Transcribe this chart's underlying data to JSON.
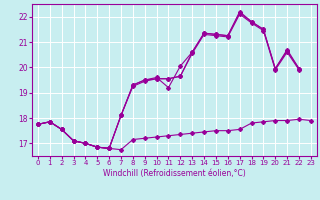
{
  "xlabel": "Windchill (Refroidissement éolien,°C)",
  "background_color": "#c8eef0",
  "line_color": "#990099",
  "grid_color": "#ffffff",
  "xlim": [
    -0.5,
    23.5
  ],
  "ylim": [
    16.5,
    22.5
  ],
  "xticks": [
    0,
    1,
    2,
    3,
    4,
    5,
    6,
    7,
    8,
    9,
    10,
    11,
    12,
    13,
    14,
    15,
    16,
    17,
    18,
    19,
    20,
    21,
    22,
    23
  ],
  "yticks": [
    17,
    18,
    19,
    20,
    21,
    22
  ],
  "line_bot_x": [
    0,
    1,
    2,
    3,
    4,
    5,
    6,
    7,
    8,
    9,
    10,
    11,
    12,
    13,
    14,
    15,
    16,
    17,
    18,
    19,
    20,
    21,
    22,
    23
  ],
  "line_bot_y": [
    17.75,
    17.85,
    17.55,
    17.1,
    17.0,
    16.85,
    16.8,
    16.75,
    17.15,
    17.2,
    17.25,
    17.3,
    17.35,
    17.4,
    17.45,
    17.5,
    17.5,
    17.55,
    17.8,
    17.85,
    17.9,
    17.9,
    17.95,
    17.9
  ],
  "line_mid1_x": [
    0,
    1,
    2,
    3,
    4,
    5,
    6,
    7,
    8,
    9,
    10,
    11,
    12,
    13,
    14,
    15,
    16,
    17,
    18,
    19,
    20,
    21,
    22
  ],
  "line_mid1_y": [
    17.75,
    17.85,
    17.55,
    17.1,
    17.0,
    16.85,
    16.8,
    18.1,
    19.25,
    19.45,
    19.55,
    19.55,
    19.65,
    20.55,
    21.3,
    21.25,
    21.2,
    22.1,
    21.75,
    21.45,
    19.9,
    20.6,
    19.9
  ],
  "line_mid2_x": [
    0,
    1,
    2,
    3,
    4,
    5,
    6,
    7,
    8,
    9,
    10,
    11,
    12,
    13,
    14,
    15,
    16,
    17,
    18,
    19,
    20,
    21,
    22
  ],
  "line_mid2_y": [
    17.75,
    17.85,
    17.55,
    17.1,
    17.0,
    16.85,
    16.8,
    18.1,
    19.3,
    19.5,
    19.55,
    19.55,
    19.65,
    20.6,
    21.35,
    21.3,
    21.25,
    22.15,
    21.8,
    21.5,
    19.95,
    20.65,
    19.95
  ],
  "line_top_x": [
    0,
    1,
    2,
    3,
    4,
    5,
    6,
    7,
    8,
    9,
    10,
    11,
    12,
    13,
    14,
    15,
    16,
    17,
    18,
    19,
    20,
    21,
    22
  ],
  "line_top_y": [
    17.75,
    17.85,
    17.55,
    17.1,
    17.0,
    16.85,
    16.8,
    18.1,
    19.3,
    19.5,
    19.6,
    19.2,
    20.05,
    20.6,
    21.35,
    21.3,
    21.25,
    22.2,
    21.8,
    21.5,
    19.95,
    20.7,
    19.95
  ],
  "marker_size": 2.0,
  "linewidth": 0.8,
  "xlabel_fontsize": 5.5,
  "tick_fontsize": 5.0
}
